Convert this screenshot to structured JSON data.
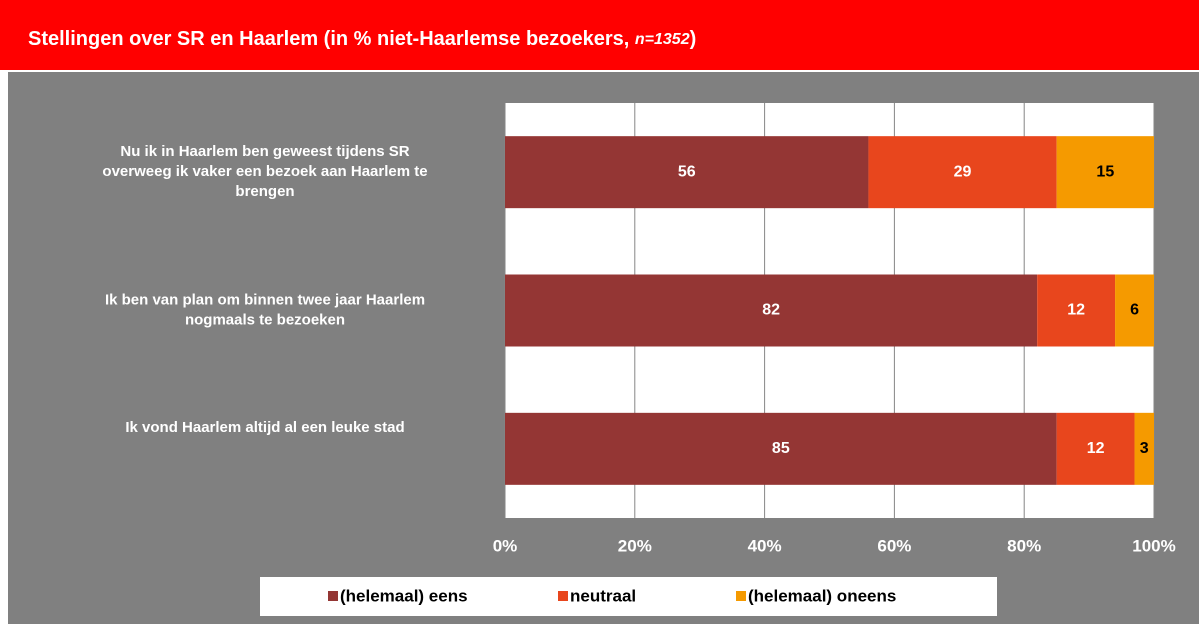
{
  "chart_data": {
    "type": "bar",
    "orientation": "horizontal",
    "stacked": true,
    "title": [
      "Stellingen over SR en Haarlem (in % niet-Haarlemse bezoekers, ",
      "n=1352",
      ")"
    ],
    "categories": [
      [
        "Nu ik in Haarlem ben geweest tijdens SR",
        "overweeg ik vaker een bezoek aan Haarlem te",
        "brengen"
      ],
      [
        "Ik ben van plan om binnen twee jaar Haarlem",
        "nogmaals te bezoeken"
      ],
      [
        "Ik vond Haarlem altijd al een leuke stad"
      ]
    ],
    "series": [
      {
        "name": "(helemaal) eens",
        "color": "#943634",
        "label_color": "#ffffff",
        "values": [
          56,
          82,
          85
        ]
      },
      {
        "name": "neutraal",
        "color": "#e8461d",
        "label_color": "#ffffff",
        "values": [
          29,
          12,
          12
        ]
      },
      {
        "name": "(helemaal) oneens",
        "color": "#f59a00",
        "label_color": "#000000",
        "values": [
          15,
          6,
          3
        ]
      }
    ],
    "xlim": [
      0,
      100
    ],
    "xticks": [
      {
        "value": 0,
        "label": "0%"
      },
      {
        "value": 20,
        "label": "20%"
      },
      {
        "value": 40,
        "label": "40%"
      },
      {
        "value": 60,
        "label": "60%"
      },
      {
        "value": 80,
        "label": "80%"
      },
      {
        "value": 100,
        "label": "100%"
      }
    ],
    "grid": true,
    "legend": "bottom"
  }
}
